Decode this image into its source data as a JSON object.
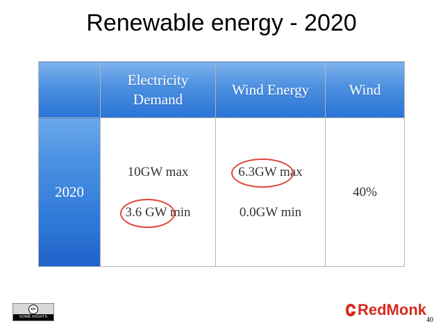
{
  "slide": {
    "title": "Renewable energy - 2020",
    "page_number": "40"
  },
  "table": {
    "header": {
      "corner": "",
      "col1": [
        "Electricity",
        "Demand"
      ],
      "col2": "Wind Energy",
      "col3": "Wind"
    },
    "row": {
      "label": "2020",
      "electricity": {
        "max": "10GW max",
        "min": "3.6 GW min"
      },
      "wind_energy": {
        "max": "6.3GW max",
        "min": "0.0GW min"
      },
      "wind": "40%"
    }
  },
  "footer": {
    "license_icon_text": "cc",
    "license_text": "SOME RIGHTS RESERVED",
    "brand": "RedMonk"
  },
  "colors": {
    "header_blue": "#4b8fe0",
    "highlight_circle": "#e0443a",
    "brand_red": "#d52b1e"
  }
}
